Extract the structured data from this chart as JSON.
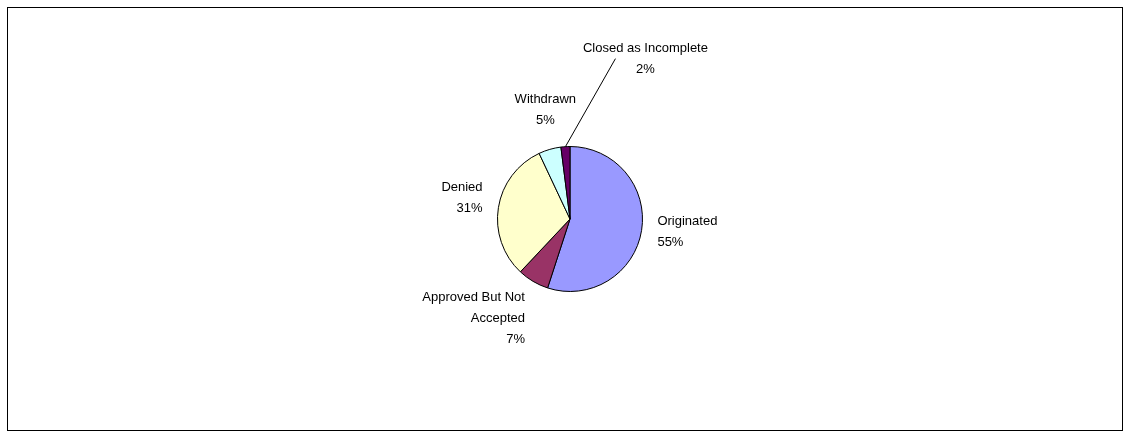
{
  "chart_data": {
    "type": "pie",
    "categories": [
      "Originated",
      "Approved But Not Accepted",
      "Denied",
      "Withdrawn",
      "Closed as Incomplete"
    ],
    "values": [
      55,
      7,
      31,
      5,
      2
    ],
    "colors": [
      "#9999ff",
      "#993366",
      "#ffffcc",
      "#ccffff",
      "#660066"
    ],
    "value_labels": [
      "55%",
      "7%",
      "31%",
      "5%",
      "2%"
    ],
    "legend": false
  }
}
